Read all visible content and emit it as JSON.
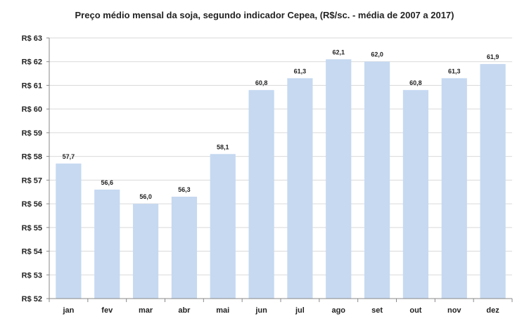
{
  "chart_data": {
    "type": "bar",
    "title": "Preço médio mensal  da soja, segundo indicador Cepea, (R$/sc. - média de 2007 a 2017)",
    "xlabel": "",
    "ylabel": "",
    "categories": [
      "jan",
      "fev",
      "mar",
      "abr",
      "mai",
      "jun",
      "jul",
      "ago",
      "set",
      "out",
      "nov",
      "dez"
    ],
    "values": [
      57.7,
      56.6,
      56.0,
      56.3,
      58.1,
      60.8,
      61.3,
      62.1,
      62.0,
      60.8,
      61.3,
      61.9
    ],
    "value_labels": [
      "57,7",
      "56,6",
      "56,0",
      "56,3",
      "58,1",
      "60,8",
      "61,3",
      "62,1",
      "62,0",
      "60,8",
      "61,3",
      "61,9"
    ],
    "ylim": [
      52,
      63
    ],
    "y_ticks": [
      52,
      53,
      54,
      55,
      56,
      57,
      58,
      59,
      60,
      61,
      62,
      63
    ],
    "y_tick_labels": [
      "R$ 52",
      "R$ 53",
      "R$ 54",
      "R$ 55",
      "R$ 56",
      "R$ 57",
      "R$ 58",
      "R$ 59",
      "R$ 60",
      "R$ 61",
      "R$ 62",
      "R$ 63"
    ],
    "grid": true,
    "legend": "none",
    "colors": {
      "bar": "#c6d9f1",
      "grid": "#d9d9d9",
      "axis": "#888888"
    }
  }
}
